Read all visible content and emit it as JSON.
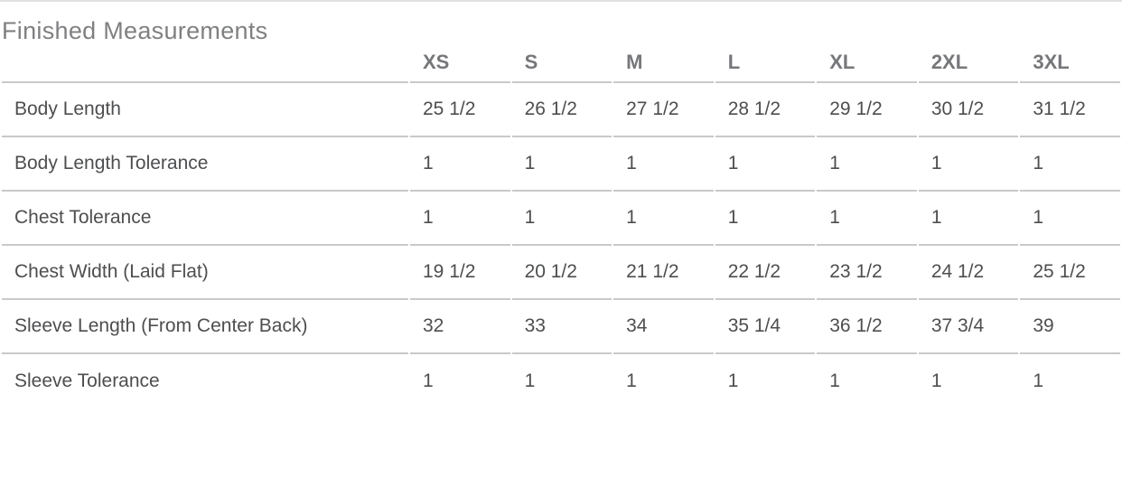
{
  "page": {
    "title": "Finished Measurements"
  },
  "table": {
    "size_headers": [
      "XS",
      "S",
      "M",
      "L",
      "XL",
      "2XL",
      "3XL"
    ],
    "rows": [
      {
        "label": "Body Length",
        "values": [
          "25 1/2",
          "26 1/2",
          "27 1/2",
          "28 1/2",
          "29 1/2",
          "30 1/2",
          "31 1/2"
        ]
      },
      {
        "label": "Body Length Tolerance",
        "values": [
          "1",
          "1",
          "1",
          "1",
          "1",
          "1",
          "1"
        ]
      },
      {
        "label": "Chest Tolerance",
        "values": [
          "1",
          "1",
          "1",
          "1",
          "1",
          "1",
          "1"
        ]
      },
      {
        "label": "Chest Width (Laid Flat)",
        "values": [
          "19 1/2",
          "20 1/2",
          "21 1/2",
          "22 1/2",
          "23 1/2",
          "24 1/2",
          "25 1/2"
        ]
      },
      {
        "label": "Sleeve Length (From Center Back)",
        "values": [
          "32",
          "33",
          "34",
          "35 1/4",
          "36 1/2",
          "37 3/4",
          "39"
        ]
      },
      {
        "label": "Sleeve Tolerance",
        "values": [
          "1",
          "1",
          "1",
          "1",
          "1",
          "1",
          "1"
        ]
      }
    ]
  },
  "colors": {
    "background": "#ffffff",
    "title_text": "#7f8082",
    "header_text": "#76777a",
    "body_text": "#4d4e50",
    "divider": "#c9c9c9",
    "top_bar": "#e2e2e2"
  }
}
